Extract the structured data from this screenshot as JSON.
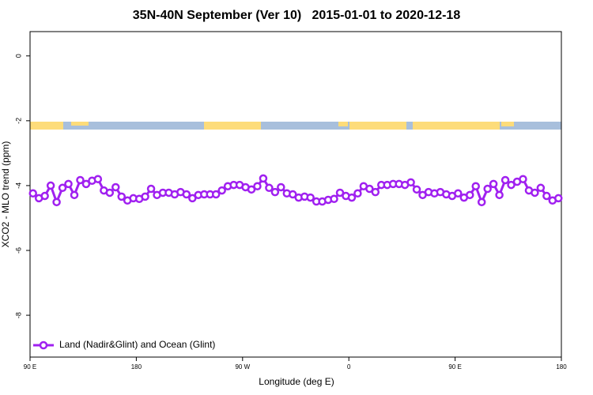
{
  "chart_data": {
    "type": "line",
    "title": "35N-40N September (Ver 10)   2015-01-01 to 2020-12-18",
    "xlabel": "Longitude (deg E)",
    "ylabel": "XCO2 - MLO trend (ppm)",
    "xlim": [
      90,
      540
    ],
    "ylim": [
      -9.29,
      0.75
    ],
    "xticks": [
      {
        "value": 90,
        "label": "90 E"
      },
      {
        "value": 180,
        "label": "180"
      },
      {
        "value": 270,
        "label": "90 W"
      },
      {
        "value": 360,
        "label": "0"
      },
      {
        "value": 450,
        "label": "90 E"
      },
      {
        "value": 540,
        "label": "180"
      }
    ],
    "yticks": [
      0,
      -2,
      -4,
      -6,
      -8
    ],
    "legend": "bottom-left",
    "x": [
      92.5,
      97.5,
      102.5,
      107.5,
      112.5,
      117.5,
      122.5,
      127.5,
      132.5,
      137.5,
      142.5,
      147.5,
      152.5,
      157.5,
      162.5,
      167.5,
      172.5,
      177.5,
      182.5,
      187.5,
      192.5,
      197.5,
      202.5,
      207.5,
      212.5,
      217.5,
      222.5,
      227.5,
      232.5,
      237.5,
      242.5,
      247.5,
      252.5,
      257.5,
      262.5,
      267.5,
      272.5,
      277.5,
      282.5,
      287.5,
      292.5,
      297.5,
      302.5,
      307.5,
      312.5,
      317.5,
      322.5,
      327.5,
      332.5,
      337.5,
      342.5,
      347.5,
      352.5,
      357.5,
      362.5,
      367.5,
      372.5,
      377.5,
      382.5,
      387.5,
      392.5,
      397.5,
      402.5,
      407.5,
      412.5,
      417.5,
      422.5,
      427.5,
      432.5,
      437.5,
      442.5,
      447.5,
      452.5,
      457.5,
      462.5,
      467.5,
      472.5,
      477.5,
      482.5,
      487.5,
      492.5,
      497.5,
      502.5,
      507.5,
      512.5,
      517.5,
      522.5,
      527.5,
      532.5,
      537.5
    ],
    "series": [
      {
        "name": "Land (Nadir&Glint) and Ocean (Glint)",
        "color": "#a020f0",
        "values": [
          -4.24,
          -4.39,
          -4.32,
          -4.0,
          -4.51,
          -4.07,
          -3.95,
          -4.29,
          -3.83,
          -3.95,
          -3.85,
          -3.8,
          -4.15,
          -4.22,
          -4.05,
          -4.34,
          -4.46,
          -4.39,
          -4.41,
          -4.34,
          -4.1,
          -4.29,
          -4.22,
          -4.22,
          -4.27,
          -4.2,
          -4.27,
          -4.39,
          -4.29,
          -4.27,
          -4.27,
          -4.27,
          -4.15,
          -4.02,
          -3.98,
          -3.98,
          -4.05,
          -4.12,
          -4.02,
          -3.78,
          -4.07,
          -4.2,
          -4.05,
          -4.24,
          -4.27,
          -4.37,
          -4.34,
          -4.37,
          -4.49,
          -4.49,
          -4.44,
          -4.41,
          -4.22,
          -4.32,
          -4.37,
          -4.24,
          -4.02,
          -4.1,
          -4.2,
          -3.98,
          -3.98,
          -3.95,
          -3.95,
          -3.98,
          -3.9,
          -4.12,
          -4.29,
          -4.2,
          -4.24,
          -4.2,
          -4.27,
          -4.32,
          -4.24,
          -4.37,
          -4.29,
          -4.02,
          -4.51,
          -4.1,
          -3.95,
          -4.29,
          -3.83,
          -3.98,
          -3.88,
          -3.8,
          -4.15,
          -4.22,
          -4.07,
          -4.32,
          -4.46,
          -4.39
        ]
      }
    ]
  }
}
